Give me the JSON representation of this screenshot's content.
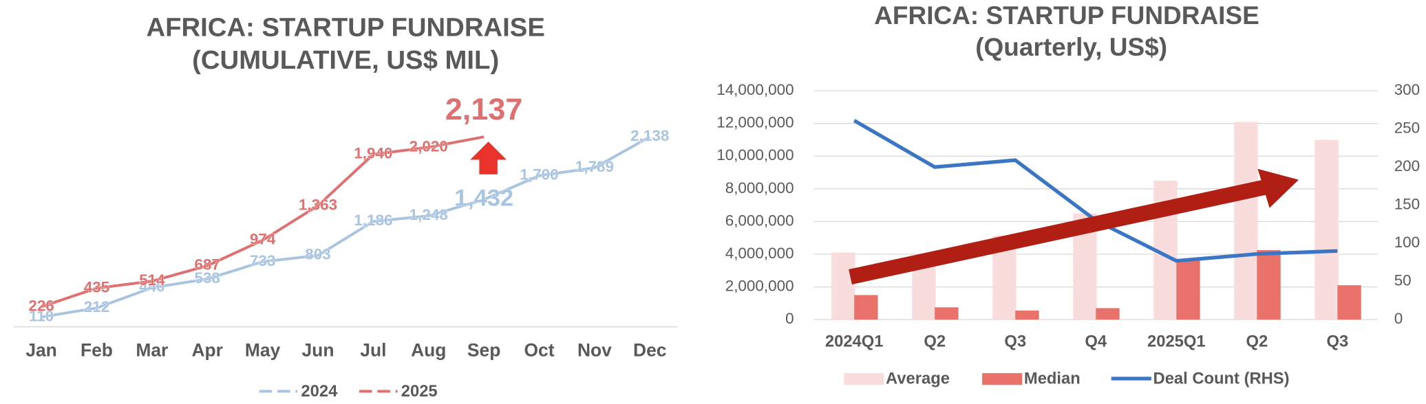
{
  "chart_data": [
    {
      "type": "line",
      "title": [
        "AFRICA: STARTUP FUNDRAISE",
        "(CUMULATIVE, US$ MIL)"
      ],
      "categories": [
        "Jan",
        "Feb",
        "Mar",
        "Apr",
        "May",
        "Jun",
        "Jul",
        "Aug",
        "Sep",
        "Oct",
        "Nov",
        "Dec"
      ],
      "ylim": [
        0,
        2400
      ],
      "legend": "bottom",
      "series": [
        {
          "name": "2024",
          "color": "#a9c4e0",
          "values": [
            110,
            212,
            440,
            538,
            733,
            803,
            1186,
            1248,
            1432,
            1700,
            1789,
            2138
          ],
          "value_labels": [
            "110",
            "212",
            "440",
            "538",
            "733",
            "803",
            "1,186",
            "1,248",
            "1,432",
            "1,700",
            "1,789",
            "2,138"
          ]
        },
        {
          "name": "2025",
          "color": "#e07070",
          "values": [
            226,
            435,
            514,
            687,
            974,
            1363,
            1940,
            2020,
            2137,
            null,
            null,
            null
          ],
          "value_labels": [
            "226",
            "435",
            "514",
            "687",
            "974",
            "1,363",
            "1,940",
            "2,020",
            "2,137",
            null,
            null,
            null
          ]
        }
      ]
    },
    {
      "type": "bar",
      "title": [
        "AFRICA: STARTUP FUNDRAISE",
        "(Quarterly, US$)"
      ],
      "categories": [
        "2024Q1",
        "Q2",
        "Q3",
        "Q4",
        "2025Q1",
        "Q2",
        "Q3"
      ],
      "ylim": [
        0,
        14000000
      ],
      "yticks": [
        {
          "value": 0,
          "label": "0"
        },
        {
          "value": 2000000,
          "label": "2,000,000"
        },
        {
          "value": 4000000,
          "label": "4,000,000"
        },
        {
          "value": 6000000,
          "label": "6,000,000"
        },
        {
          "value": 8000000,
          "label": "8,000,000"
        },
        {
          "value": 10000000,
          "label": "10,000,000"
        },
        {
          "value": 12000000,
          "label": "12,000,000"
        },
        {
          "value": 14000000,
          "label": "14,000,000"
        }
      ],
      "y2lim": [
        0,
        300
      ],
      "y2ticks": [
        0,
        50,
        100,
        150,
        200,
        250,
        300
      ],
      "grid": true,
      "legend": "bottom",
      "series": [
        {
          "name": "Average",
          "color": "#f9dcdc",
          "values": [
            4100000,
            3900000,
            5150000,
            6500000,
            8500000,
            12100000,
            11000000
          ]
        },
        {
          "name": "Median",
          "color": "#e8716a",
          "values": [
            1500000,
            750000,
            550000,
            700000,
            3700000,
            4250000,
            2100000
          ]
        },
        {
          "name": "Deal Count (RHS)",
          "color": "#3a76c4",
          "type": "line",
          "axis": "y2",
          "values": [
            261,
            200,
            209,
            130,
            77,
            86,
            90
          ]
        }
      ]
    }
  ]
}
